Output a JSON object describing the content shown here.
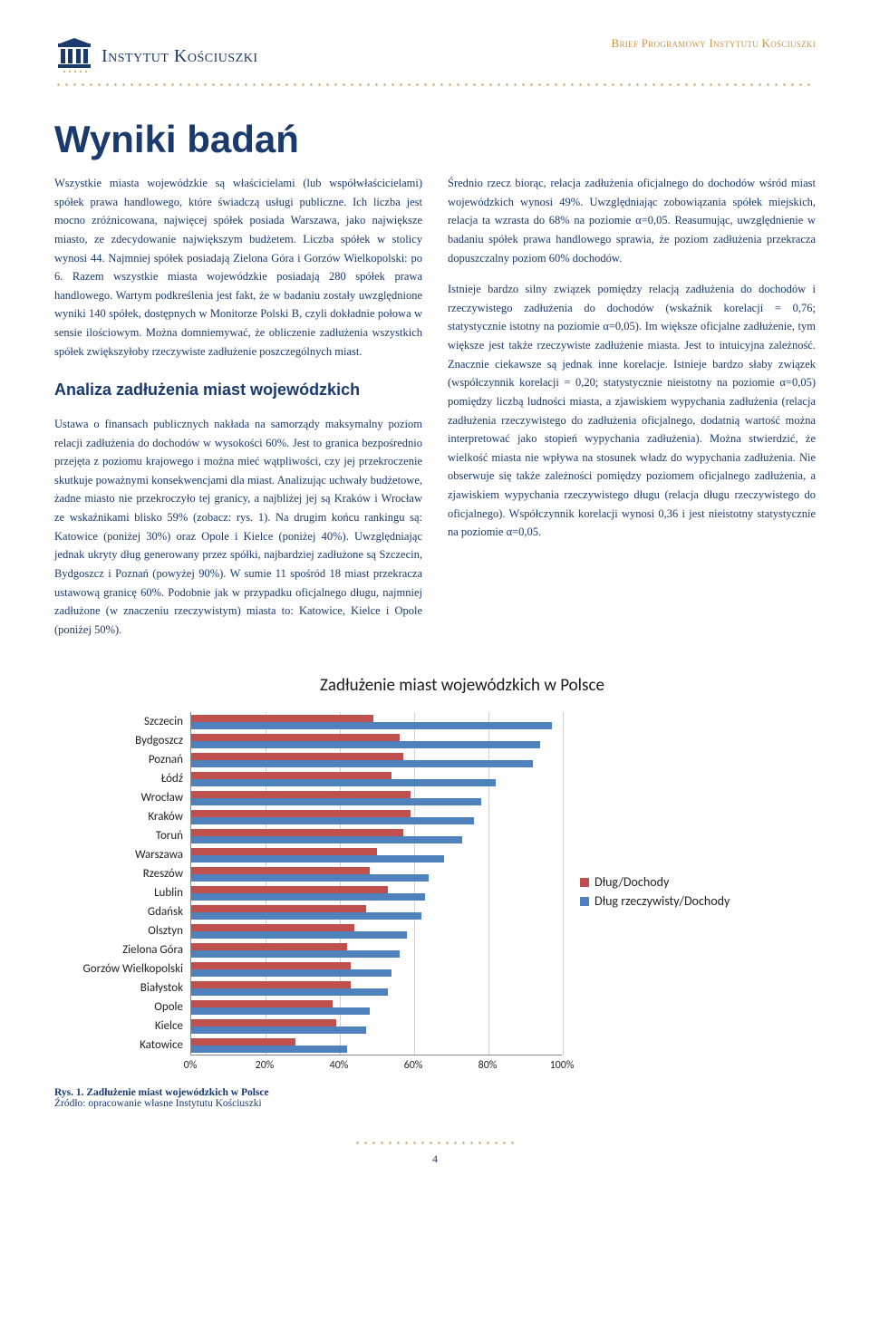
{
  "header": {
    "logo_text": "Instytut Kościuszki",
    "right_text": "Brief Programowy Instytutu Kościuszki"
  },
  "title": "Wyniki badań",
  "col1": {
    "p1": "Wszystkie miasta wojewódzkie są właścicielami (lub współwłaścicielami) spółek prawa handlowego, które świadczą usługi publiczne. Ich liczba jest mocno zróżnicowana, najwięcej spółek posiada Warszawa, jako największe miasto, ze zdecydowanie największym budżetem. Liczba spółek w stolicy wynosi 44. Najmniej spółek posiadają Zielona Góra i Gorzów Wielkopolski: po 6. Razem wszystkie miasta wojewódzkie posiadają 280 spółek prawa handlowego. Wartym podkreślenia jest fakt, że w badaniu zostały uwzględnione wyniki 140 spółek, dostępnych w Monitorze Polski B, czyli dokładnie połowa w sensie ilościowym. Można domniemywać, że obliczenie zadłużenia wszystkich spółek zwiększyłoby rzeczywiste zadłużenie poszczególnych miast.",
    "heading": "Analiza zadłużenia miast wojewódzkich",
    "p2": "Ustawa o finansach publicznych nakłada na samorządy maksymalny poziom relacji zadłużenia do dochodów w wysokości 60%. Jest to granica bezpośrednio przejęta z poziomu krajowego i można mieć wątpliwości, czy jej przekroczenie skutkuje poważnymi konsekwencjami dla miast. Analizując uchwały budżetowe, żadne miasto nie przekroczyło tej granicy, a najbliżej jej są Kraków i Wrocław ze wskaźnikami blisko 59% (zobacz: rys. 1). Na drugim końcu rankingu są: Katowice (poniżej 30%) oraz Opole i Kielce (poniżej 40%). Uwzględniając jednak ukryty dług generowany przez spółki, najbardziej zadłużone są Szczecin, Bydgoszcz i Poznań (powyżej 90%). W sumie 11 spośród 18 miast przekracza ustawową granicę 60%. Podobnie jak w przypadku oficjalnego długu, najmniej zadłużone (w znaczeniu rzeczywistym) miasta to: Katowice, Kielce i Opole (poniżej 50%)."
  },
  "col2": {
    "p1": "Średnio rzecz biorąc, relacja zadłużenia oficjalnego do dochodów wśród miast wojewódzkich wynosi 49%. Uwzględniając zobowiązania spółek miejskich, relacja ta wzrasta do 68% na poziomie α=0,05. Reasumując, uwzględnienie w badaniu spółek prawa handlowego sprawia, że poziom zadłużenia przekracza dopuszczalny poziom 60% dochodów.",
    "p2": "Istnieje bardzo silny związek pomiędzy relacją zadłużenia do dochodów i rzeczywistego zadłużenia do dochodów (wskaźnik korelacji = 0,76; statystycznie istotny na poziomie α=0,05). Im większe oficjalne zadłużenie, tym większe jest także rzeczywiste zadłużenie miasta. Jest to intuicyjna zależność. Znacznie ciekawsze są jednak inne korelacje. Istnieje bardzo słaby związek (współczynnik korelacji = 0,20; statystycznie nieistotny na poziomie α=0,05) pomiędzy liczbą ludności miasta, a zjawiskiem wypychania zadłużenia (relacja zadłużenia rzeczywistego do zadłużenia oficjalnego, dodatnią wartość można interpretować jako stopień wypychania zadłużenia). Można stwierdzić, że wielkość miasta nie wpływa na stosunek władz do wypychania zadłużenia. Nie obserwuje się także zależności pomiędzy poziomem oficjalnego zadłużenia, a zjawiskiem wypychania rzeczywistego długu (relacja długu rzeczywistego do oficjalnego). Współczynnik korelacji wynosi 0,36 i jest nieistotny statystycznie na poziomie α=0,05."
  },
  "chart": {
    "title": "Zadłużenie miast wojewódzkich w Polsce",
    "type": "horizontal-bar",
    "x_max": 100,
    "x_ticks": [
      0,
      20,
      40,
      60,
      80,
      100
    ],
    "x_tick_labels": [
      "0%",
      "20%",
      "40%",
      "60%",
      "80%",
      "100%"
    ],
    "series": [
      {
        "name": "Dług/Dochody",
        "color": "#c0504d"
      },
      {
        "name": "Dług rzeczywisty/Dochody",
        "color": "#4f81bd"
      }
    ],
    "categories": [
      {
        "label": "Szczecin",
        "v1": 49,
        "v2": 97
      },
      {
        "label": "Bydgoszcz",
        "v1": 56,
        "v2": 94
      },
      {
        "label": "Poznań",
        "v1": 57,
        "v2": 92
      },
      {
        "label": "Łódź",
        "v1": 54,
        "v2": 82
      },
      {
        "label": "Wrocław",
        "v1": 59,
        "v2": 78
      },
      {
        "label": "Kraków",
        "v1": 59,
        "v2": 76
      },
      {
        "label": "Toruń",
        "v1": 57,
        "v2": 73
      },
      {
        "label": "Warszawa",
        "v1": 50,
        "v2": 68
      },
      {
        "label": "Rzeszów",
        "v1": 48,
        "v2": 64
      },
      {
        "label": "Lublin",
        "v1": 53,
        "v2": 63
      },
      {
        "label": "Gdańsk",
        "v1": 47,
        "v2": 62
      },
      {
        "label": "Olsztyn",
        "v1": 44,
        "v2": 58
      },
      {
        "label": "Zielona Góra",
        "v1": 42,
        "v2": 56
      },
      {
        "label": "Gorzów Wielkopolski",
        "v1": 43,
        "v2": 54
      },
      {
        "label": "Białystok",
        "v1": 43,
        "v2": 53
      },
      {
        "label": "Opole",
        "v1": 38,
        "v2": 48
      },
      {
        "label": "Kielce",
        "v1": 39,
        "v2": 47
      },
      {
        "label": "Katowice",
        "v1": 28,
        "v2": 42
      }
    ],
    "grid_color": "#d0d0d0",
    "axis_color": "#888888",
    "label_fontsize": 13,
    "background_color": "#ffffff"
  },
  "caption": {
    "title": "Rys. 1. Zadłużenie miast wojewódzkich w Polsce",
    "source": "Źródło: opracowanie własne Instytutu Kościuszki"
  },
  "page_number": "4",
  "logo_colors": {
    "primary": "#1a3a6e",
    "accent": "#c8944a"
  }
}
